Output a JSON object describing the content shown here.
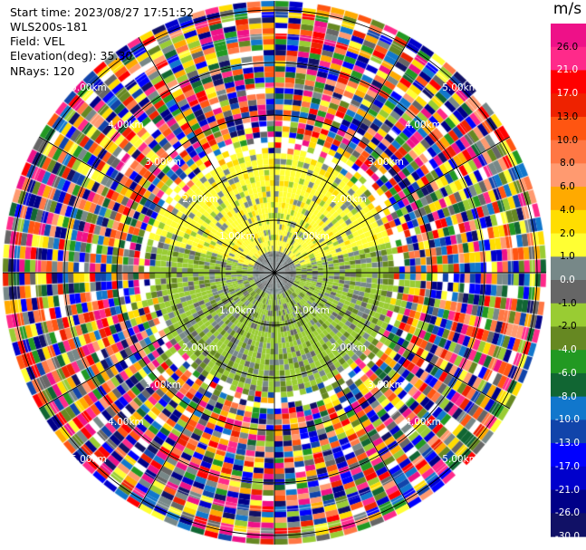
{
  "header": {
    "start_time": "Start time: 2023/08/27 17:51:52",
    "instrument": "WLS200s-181",
    "field": "Field: VEL",
    "elevation": "Elevation(deg): 35.30",
    "nrays": "NRays: 120"
  },
  "chart_data": {
    "type": "heatmap",
    "projection": "polar PPI",
    "field": "VEL",
    "units": "m/s",
    "nrays": 120,
    "elevation_deg": 35.3,
    "range_rings_km": [
      "1.00km",
      "2.00km",
      "3.00km",
      "4.00km",
      "5.00km"
    ],
    "colorbar": {
      "title": "m/s",
      "levels": [
        30,
        26,
        21,
        17,
        13,
        10,
        8,
        6,
        4,
        2,
        1,
        0,
        -1,
        -2,
        -4,
        -6,
        -8,
        -10,
        -13,
        -17,
        -21,
        -26,
        -30
      ],
      "colors": [
        "#ee1188",
        "#ff2a8a",
        "#ff0000",
        "#ee2200",
        "#ff5511",
        "#ff7744",
        "#ff9a70",
        "#ffaa00",
        "#ffdd00",
        "#ffff33",
        "#778888",
        "#666666",
        "#99cc33",
        "#668822",
        "#229922",
        "#116633",
        "#1177cc",
        "#1144aa",
        "#0000ff",
        "#0000cc",
        "#000088",
        "#111166"
      ],
      "tick_labels": [
        "26.0",
        "21.0",
        "17.0",
        "13.0",
        "10.0",
        "8.0",
        "6.0",
        "4.0",
        "2.0",
        "1.0",
        "0.0",
        "-1.0",
        "-2.0",
        "-4.0",
        "-6.0",
        "-8.0",
        "-10.0",
        "-13.0",
        "-17.0",
        "-21.0",
        "-26.0",
        "-30.0"
      ]
    },
    "signal_region": {
      "description_values": "inner returns within about 2.2 km",
      "north_sector_values_ms": [
        1,
        4
      ],
      "south_sector_values_ms": [
        -4,
        -1
      ],
      "center_values_ms": [
        -1,
        1
      ]
    }
  }
}
